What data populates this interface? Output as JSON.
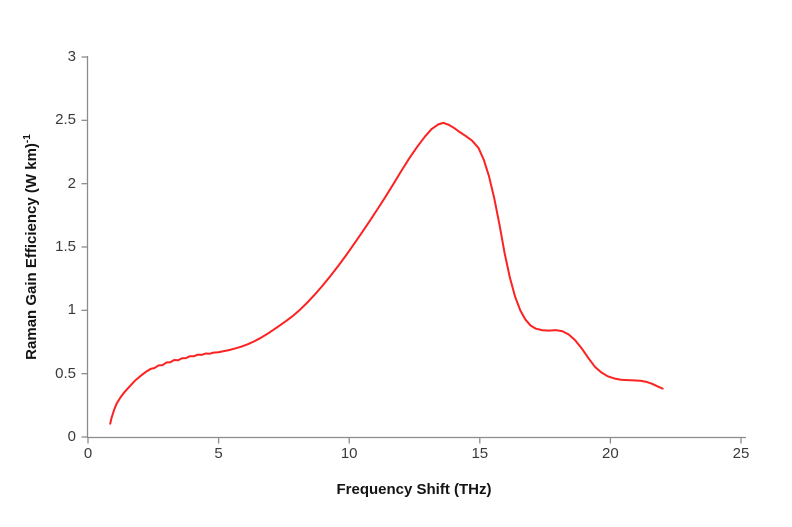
{
  "chart_data": {
    "type": "line",
    "title": "",
    "xlabel": "Frequency Shift (THz)",
    "ylabel": "Raman Gain Efficiency (W km)",
    "ylabel_sup": "-1",
    "xlim": [
      0,
      25
    ],
    "ylim": [
      0,
      3
    ],
    "x_ticks": [
      "0",
      "5",
      "10",
      "15",
      "20",
      "25"
    ],
    "y_ticks": [
      "0",
      "0.5",
      "1",
      "1.5",
      "2",
      "2.5",
      "3"
    ],
    "grid": false,
    "legend": "none",
    "axis_color": "#8c8c8c",
    "tick_text_color": "#3a3a3a",
    "background": "#ffffff",
    "series": [
      {
        "color": "#fb2222",
        "points": [
          [
            0.85,
            0.105
          ],
          [
            0.9,
            0.15
          ],
          [
            1.0,
            0.215
          ],
          [
            1.1,
            0.265
          ],
          [
            1.25,
            0.315
          ],
          [
            1.4,
            0.355
          ],
          [
            1.6,
            0.4
          ],
          [
            1.8,
            0.445
          ],
          [
            2.0,
            0.48
          ],
          [
            2.2,
            0.512
          ],
          [
            2.4,
            0.538
          ],
          [
            2.55,
            0.545
          ],
          [
            2.7,
            0.565
          ],
          [
            2.85,
            0.567
          ],
          [
            3.0,
            0.588
          ],
          [
            3.15,
            0.59
          ],
          [
            3.3,
            0.608
          ],
          [
            3.45,
            0.606
          ],
          [
            3.6,
            0.622
          ],
          [
            3.75,
            0.623
          ],
          [
            3.9,
            0.638
          ],
          [
            4.05,
            0.637
          ],
          [
            4.2,
            0.65
          ],
          [
            4.35,
            0.648
          ],
          [
            4.5,
            0.659
          ],
          [
            4.65,
            0.657
          ],
          [
            4.8,
            0.666
          ],
          [
            5.0,
            0.669
          ],
          [
            5.2,
            0.678
          ],
          [
            5.4,
            0.686
          ],
          [
            5.6,
            0.697
          ],
          [
            5.85,
            0.712
          ],
          [
            6.1,
            0.731
          ],
          [
            6.35,
            0.754
          ],
          [
            6.6,
            0.781
          ],
          [
            6.85,
            0.812
          ],
          [
            7.1,
            0.846
          ],
          [
            7.35,
            0.882
          ],
          [
            7.6,
            0.918
          ],
          [
            7.85,
            0.957
          ],
          [
            8.1,
            1.002
          ],
          [
            8.4,
            1.062
          ],
          [
            8.7,
            1.128
          ],
          [
            9.0,
            1.2
          ],
          [
            9.3,
            1.276
          ],
          [
            9.6,
            1.356
          ],
          [
            9.9,
            1.44
          ],
          [
            10.2,
            1.528
          ],
          [
            10.5,
            1.618
          ],
          [
            10.8,
            1.71
          ],
          [
            11.1,
            1.804
          ],
          [
            11.4,
            1.9
          ],
          [
            11.7,
            2.0
          ],
          [
            12.0,
            2.102
          ],
          [
            12.3,
            2.2
          ],
          [
            12.6,
            2.29
          ],
          [
            12.9,
            2.372
          ],
          [
            13.15,
            2.43
          ],
          [
            13.4,
            2.467
          ],
          [
            13.6,
            2.48
          ],
          [
            13.8,
            2.466
          ],
          [
            14.0,
            2.442
          ],
          [
            14.2,
            2.412
          ],
          [
            14.45,
            2.378
          ],
          [
            14.7,
            2.34
          ],
          [
            14.95,
            2.282
          ],
          [
            15.15,
            2.19
          ],
          [
            15.35,
            2.06
          ],
          [
            15.55,
            1.888
          ],
          [
            15.75,
            1.68
          ],
          [
            15.95,
            1.452
          ],
          [
            16.15,
            1.26
          ],
          [
            16.35,
            1.108
          ],
          [
            16.55,
            1.0
          ],
          [
            16.75,
            0.926
          ],
          [
            16.95,
            0.879
          ],
          [
            17.15,
            0.855
          ],
          [
            17.4,
            0.843
          ],
          [
            17.65,
            0.84
          ],
          [
            17.9,
            0.844
          ],
          [
            18.15,
            0.836
          ],
          [
            18.4,
            0.81
          ],
          [
            18.65,
            0.764
          ],
          [
            18.9,
            0.7
          ],
          [
            19.15,
            0.625
          ],
          [
            19.4,
            0.556
          ],
          [
            19.65,
            0.51
          ],
          [
            19.9,
            0.479
          ],
          [
            20.15,
            0.462
          ],
          [
            20.4,
            0.452
          ],
          [
            20.65,
            0.449
          ],
          [
            20.9,
            0.447
          ],
          [
            21.15,
            0.444
          ],
          [
            21.4,
            0.434
          ],
          [
            21.6,
            0.42
          ],
          [
            21.8,
            0.4
          ],
          [
            22.0,
            0.382
          ]
        ]
      }
    ]
  }
}
